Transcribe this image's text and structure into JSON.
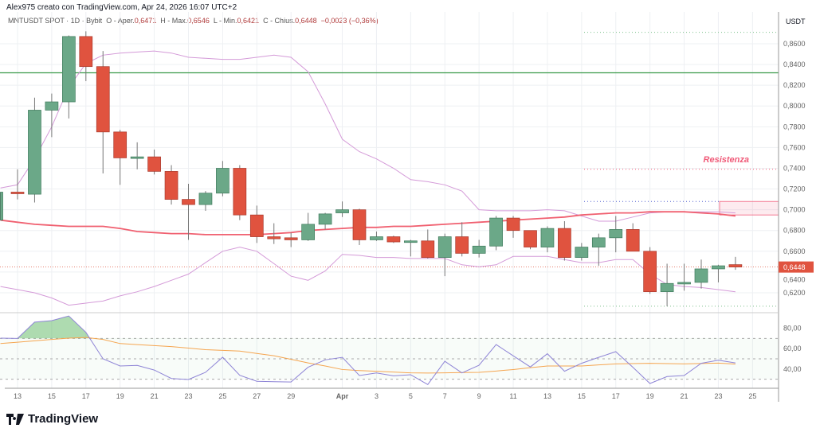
{
  "header": {
    "credit": "Alex975 creato con TradingView.com, Apr 24, 2026 16:07 UTC+2"
  },
  "legend": {
    "symbol": "MNTUSDT SPOT · 1D · Bybit",
    "open_label": "O - Aper.",
    "open": "0,6471",
    "high_label": "H - Max.",
    "high": "0,6546",
    "low_label": "L - Min.",
    "low": "0,6421",
    "close_label": "C - Chius.",
    "close": "0,6448",
    "change": "−0,0023 (−0,36%)"
  },
  "brand": {
    "name": "TradingView"
  },
  "colors": {
    "up": "#6ba888",
    "down": "#e0533f",
    "ma": "#f06070",
    "band": "#d49ad8",
    "rsi": "#8e84d6",
    "rsi_ma": "#f5a550",
    "resistance": "#f05a78",
    "support_line": "#3a9a4a"
  },
  "chart_data": [
    {
      "type": "candlestick",
      "currency_label": "USDT",
      "ylim": [
        0.595,
        0.875
      ],
      "y_ticks": [
        "0,8600",
        "0,8400",
        "0,8200",
        "0,8000",
        "0,7800",
        "0,7600",
        "0,7400",
        "0,7200",
        "0,7000",
        "0,6800",
        "0,6600",
        "0,6400",
        "0,6200"
      ],
      "x_ticks": [
        "13",
        "15",
        "17",
        "19",
        "21",
        "23",
        "25",
        "27",
        "29",
        "Apr",
        "3",
        "5",
        "7",
        "9",
        "11",
        "13",
        "15",
        "17",
        "19",
        "21",
        "23",
        "25"
      ],
      "dates": [
        "Mar 12",
        "Mar 13",
        "Mar 14",
        "Mar 15",
        "Mar 16",
        "Mar 17",
        "Mar 18",
        "Mar 19",
        "Mar 20",
        "Mar 21",
        "Mar 22",
        "Mar 23",
        "Mar 24",
        "Mar 25",
        "Mar 26",
        "Mar 27",
        "Mar 28",
        "Mar 29",
        "Mar 30",
        "Mar 31",
        "Apr 1",
        "Apr 2",
        "Apr 3",
        "Apr 4",
        "Apr 5",
        "Apr 6",
        "Apr 7",
        "Apr 8",
        "Apr 9",
        "Apr 10",
        "Apr 11",
        "Apr 12",
        "Apr 13",
        "Apr 14",
        "Apr 15",
        "Apr 16",
        "Apr 17",
        "Apr 18",
        "Apr 19",
        "Apr 20",
        "Apr 21",
        "Apr 22",
        "Apr 23",
        "Apr 24"
      ],
      "ohlc": [
        [
          0.69,
          0.717,
          0.69,
          0.717
        ],
        [
          0.717,
          0.739,
          0.71,
          0.716
        ],
        [
          0.715,
          0.808,
          0.707,
          0.796
        ],
        [
          0.796,
          0.812,
          0.77,
          0.804
        ],
        [
          0.804,
          0.868,
          0.788,
          0.867
        ],
        [
          0.867,
          0.872,
          0.824,
          0.838
        ],
        [
          0.838,
          0.853,
          0.735,
          0.775
        ],
        [
          0.775,
          0.777,
          0.724,
          0.75
        ],
        [
          0.75,
          0.765,
          0.739,
          0.751
        ],
        [
          0.751,
          0.758,
          0.734,
          0.737
        ],
        [
          0.737,
          0.743,
          0.705,
          0.71
        ],
        [
          0.71,
          0.725,
          0.671,
          0.705
        ],
        [
          0.705,
          0.718,
          0.699,
          0.716
        ],
        [
          0.716,
          0.747,
          0.713,
          0.74
        ],
        [
          0.74,
          0.743,
          0.69,
          0.695
        ],
        [
          0.695,
          0.704,
          0.668,
          0.674
        ],
        [
          0.674,
          0.687,
          0.667,
          0.672
        ],
        [
          0.673,
          0.678,
          0.664,
          0.671
        ],
        [
          0.671,
          0.697,
          0.67,
          0.686
        ],
        [
          0.686,
          0.697,
          0.681,
          0.696
        ],
        [
          0.697,
          0.708,
          0.693,
          0.7
        ],
        [
          0.7,
          0.701,
          0.666,
          0.671
        ],
        [
          0.671,
          0.679,
          0.67,
          0.674
        ],
        [
          0.674,
          0.675,
          0.668,
          0.669
        ],
        [
          0.669,
          0.671,
          0.655,
          0.67
        ],
        [
          0.67,
          0.681,
          0.653,
          0.654
        ],
        [
          0.654,
          0.677,
          0.636,
          0.674
        ],
        [
          0.674,
          0.688,
          0.655,
          0.658
        ],
        [
          0.658,
          0.671,
          0.654,
          0.665
        ],
        [
          0.665,
          0.694,
          0.661,
          0.692
        ],
        [
          0.692,
          0.694,
          0.673,
          0.68
        ],
        [
          0.68,
          0.68,
          0.662,
          0.664
        ],
        [
          0.664,
          0.684,
          0.659,
          0.682
        ],
        [
          0.682,
          0.689,
          0.651,
          0.654
        ],
        [
          0.654,
          0.668,
          0.651,
          0.664
        ],
        [
          0.664,
          0.677,
          0.646,
          0.673
        ],
        [
          0.673,
          0.694,
          0.659,
          0.681
        ],
        [
          0.681,
          0.687,
          0.66,
          0.66
        ],
        [
          0.66,
          0.664,
          0.619,
          0.621
        ],
        [
          0.621,
          0.648,
          0.607,
          0.629
        ],
        [
          0.629,
          0.648,
          0.622,
          0.63
        ],
        [
          0.63,
          0.652,
          0.624,
          0.643
        ],
        [
          0.643,
          0.647,
          0.63,
          0.646
        ],
        [
          0.6471,
          0.6546,
          0.6421,
          0.6448
        ]
      ],
      "bands": {
        "upper": [
          0.721,
          0.724,
          0.749,
          0.78,
          0.818,
          0.841,
          0.849,
          0.851,
          0.852,
          0.853,
          0.851,
          0.847,
          0.846,
          0.845,
          0.845,
          0.847,
          0.849,
          0.847,
          0.833,
          0.802,
          0.768,
          0.756,
          0.749,
          0.74,
          0.729,
          0.727,
          0.724,
          0.718,
          0.7,
          0.699,
          0.699,
          0.699,
          0.7,
          0.699,
          0.694,
          0.689,
          0.689,
          0.693,
          0.697,
          0.698,
          0.698,
          0.698,
          0.698,
          0.697
        ],
        "middle": [
          0.69,
          0.688,
          0.686,
          0.685,
          0.684,
          0.684,
          0.684,
          0.682,
          0.679,
          0.678,
          0.677,
          0.677,
          0.676,
          0.676,
          0.676,
          0.676,
          0.677,
          0.678,
          0.68,
          0.681,
          0.682,
          0.683,
          0.683,
          0.684,
          0.684,
          0.685,
          0.686,
          0.687,
          0.688,
          0.689,
          0.69,
          0.691,
          0.692,
          0.693,
          0.695,
          0.696,
          0.697,
          0.697,
          0.698,
          0.698,
          0.698,
          0.697,
          0.696,
          0.694
        ],
        "lower": [
          0.626,
          0.623,
          0.62,
          0.615,
          0.608,
          0.61,
          0.612,
          0.617,
          0.621,
          0.626,
          0.632,
          0.638,
          0.649,
          0.66,
          0.664,
          0.66,
          0.648,
          0.636,
          0.632,
          0.641,
          0.657,
          0.656,
          0.654,
          0.654,
          0.653,
          0.653,
          0.653,
          0.647,
          0.645,
          0.647,
          0.655,
          0.655,
          0.655,
          0.652,
          0.649,
          0.649,
          0.652,
          0.652,
          0.638,
          0.628,
          0.626,
          0.625,
          0.623,
          0.621
        ]
      },
      "levels": {
        "support_line": 0.832,
        "resistance": 0.739,
        "resistance_label": "Resistenza",
        "zone_top": 0.708,
        "zone_bottom": 0.695,
        "range_top": 0.871,
        "range_bottom": 0.607
      },
      "last_price": 0.6448,
      "last_price_label": "0,6448"
    },
    {
      "type": "line",
      "ylim": [
        22,
        97
      ],
      "y_ticks": [
        "80,00",
        "60,00",
        "40,00"
      ],
      "levels": [
        70,
        50,
        30
      ],
      "rsi": [
        70.3,
        70,
        86,
        87.5,
        92,
        76,
        50,
        43,
        43.5,
        39,
        30.7,
        29.7,
        36.7,
        51.6,
        33.8,
        28,
        27.6,
        27.3,
        41.7,
        49,
        51.5,
        33.6,
        36.2,
        33.3,
        34.4,
        24.8,
        47.6,
        36.2,
        43.7,
        64,
        53,
        42,
        55,
        37.8,
        45.6,
        51.5,
        57,
        41.7,
        25.8,
        32.6,
        33.6,
        45.6,
        48.7,
        46
      ],
      "rsi_ma": [
        65,
        66.3,
        67.7,
        69,
        70.3,
        71,
        69,
        65,
        64,
        63,
        62,
        60.5,
        59,
        58.3,
        57.6,
        55.3,
        53,
        49.5,
        46,
        43,
        39.5,
        38.5,
        37.8,
        37,
        36.2,
        36,
        36.2,
        36.5,
        36.7,
        38,
        39.5,
        41.3,
        43,
        43,
        43,
        44,
        45,
        45.3,
        45.6,
        45.3,
        45,
        45.4,
        45.8,
        44.8
      ]
    }
  ]
}
